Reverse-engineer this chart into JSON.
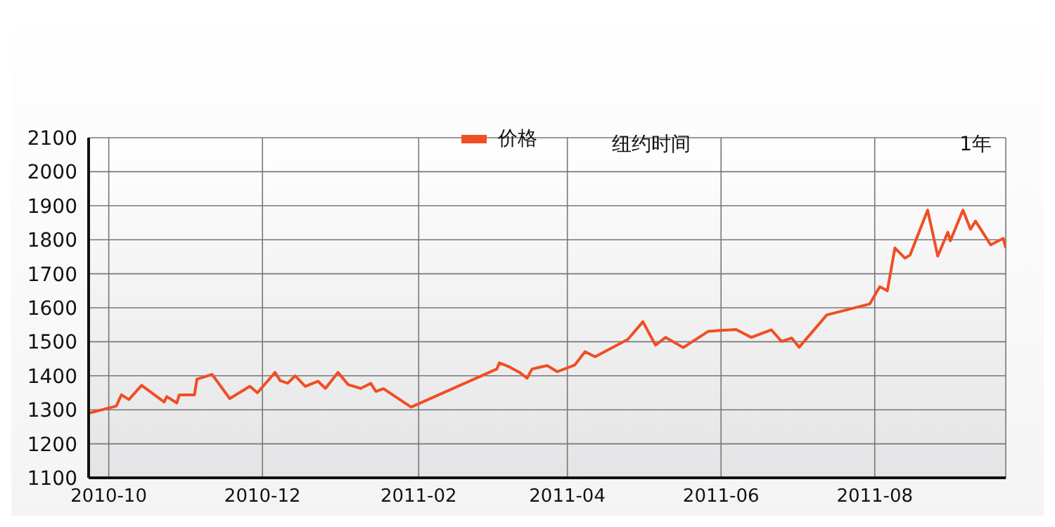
{
  "chart_data": {
    "type": "line",
    "annotations": [
      "纽约时间",
      "1年"
    ],
    "x": [
      "2010-09-23",
      "2010-10-04",
      "2010-10-06",
      "2010-10-09",
      "2010-10-14",
      "2010-10-23",
      "2010-10-24",
      "2010-10-28",
      "2010-10-29",
      "2010-11-04",
      "2010-11-05",
      "2010-11-11",
      "2010-11-18",
      "2010-11-26",
      "2010-11-29",
      "2010-12-06",
      "2010-12-08",
      "2010-12-11",
      "2010-12-14",
      "2010-12-18",
      "2010-12-23",
      "2010-12-26",
      "2010-12-31",
      "2011-01-04",
      "2011-01-09",
      "2011-01-13",
      "2011-01-15",
      "2011-01-18",
      "2011-01-29",
      "2011-03-04",
      "2011-03-05",
      "2011-03-09",
      "2011-03-13",
      "2011-03-16",
      "2011-03-18",
      "2011-03-24",
      "2011-03-28",
      "2011-04-04",
      "2011-04-08",
      "2011-04-12",
      "2011-04-25",
      "2011-05-01",
      "2011-05-06",
      "2011-05-10",
      "2011-05-17",
      "2011-05-27",
      "2011-06-07",
      "2011-06-13",
      "2011-06-21",
      "2011-06-25",
      "2011-06-29",
      "2011-07-02",
      "2011-07-13",
      "2011-07-30",
      "2011-08-03",
      "2011-08-06",
      "2011-08-09",
      "2011-08-13",
      "2011-08-15",
      "2011-08-22",
      "2011-08-26",
      "2011-08-30",
      "2011-08-31",
      "2011-09-05",
      "2011-09-08",
      "2011-09-10",
      "2011-09-16",
      "2011-09-21",
      "2011-09-22"
    ],
    "series": [
      {
        "name": "价格",
        "color": "#f04e23",
        "values": [
          1290,
          1311,
          1344,
          1330,
          1372,
          1323,
          1339,
          1320,
          1344,
          1344,
          1390,
          1404,
          1333,
          1369,
          1350,
          1410,
          1386,
          1378,
          1400,
          1369,
          1384,
          1363,
          1410,
          1374,
          1363,
          1378,
          1354,
          1362,
          1308,
          1420,
          1438,
          1426,
          1410,
          1393,
          1420,
          1430,
          1412,
          1432,
          1471,
          1456,
          1507,
          1559,
          1490,
          1513,
          1483,
          1531,
          1536,
          1513,
          1535,
          1501,
          1511,
          1484,
          1579,
          1611,
          1662,
          1650,
          1776,
          1746,
          1755,
          1887,
          1752,
          1822,
          1797,
          1887,
          1831,
          1855,
          1785,
          1804,
          1776
        ]
      }
    ],
    "xlim": [
      "2010-09-23",
      "2011-09-22"
    ],
    "xticks": [
      {
        "value": "2010-10-01",
        "label": "2010-10"
      },
      {
        "value": "2010-12-01",
        "label": "2010-12"
      },
      {
        "value": "2011-02-01",
        "label": "2011-02"
      },
      {
        "value": "2011-04-01",
        "label": "2011-04"
      },
      {
        "value": "2011-06-01",
        "label": "2011-06"
      },
      {
        "value": "2011-08-01",
        "label": "2011-08"
      }
    ],
    "ylim": [
      1100,
      2100
    ],
    "yticks": [
      1100,
      1200,
      1300,
      1400,
      1500,
      1600,
      1700,
      1800,
      1900,
      2000,
      2100
    ],
    "grid": true,
    "legend": "top",
    "marker": "none",
    "line_style": "solid"
  }
}
